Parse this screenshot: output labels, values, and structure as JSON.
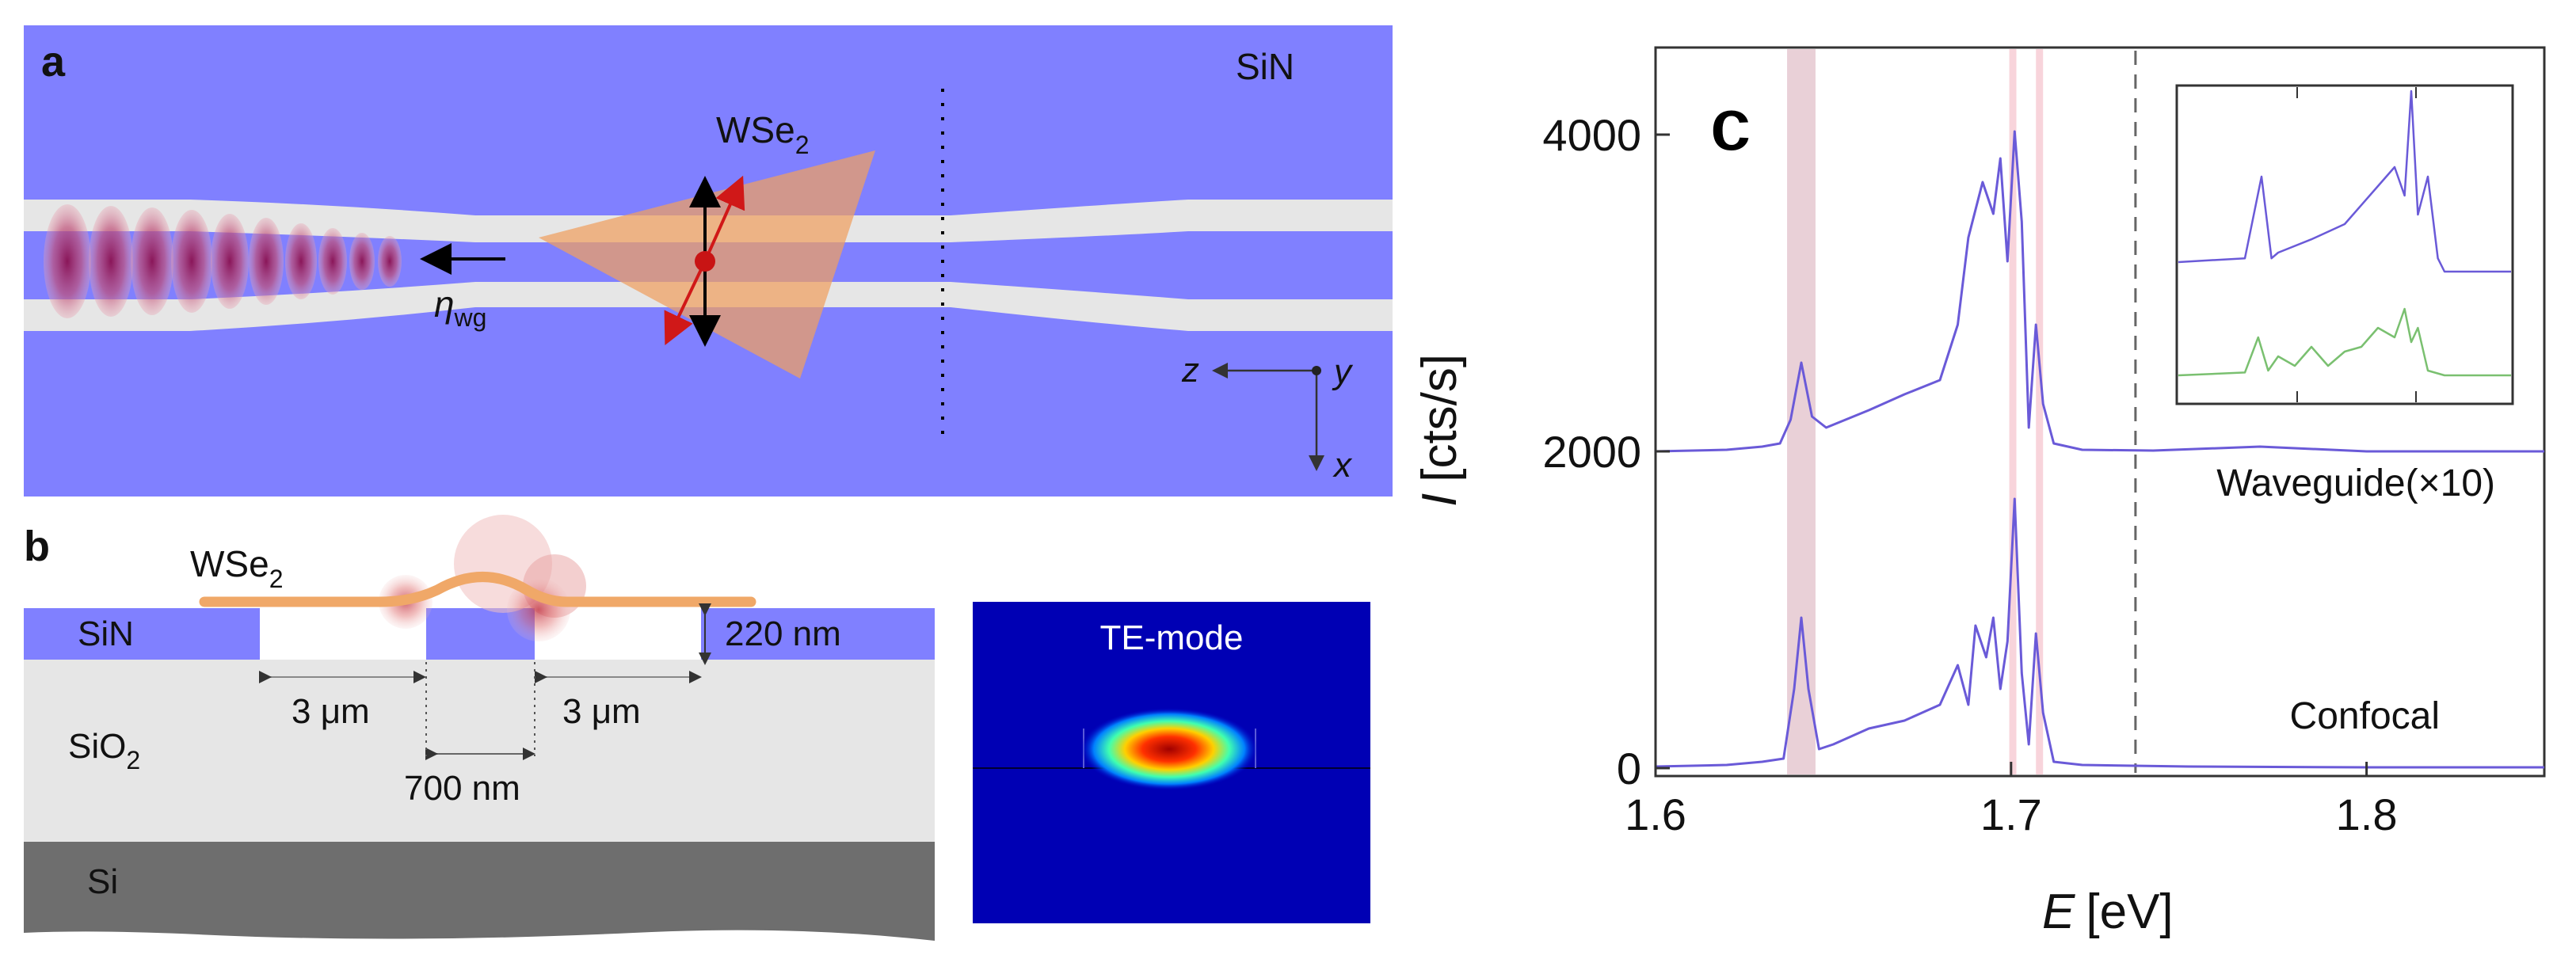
{
  "figure": {
    "panel_a": {
      "letter": "a",
      "material_label": "SiN",
      "flake_label_main": "WSe",
      "flake_label_sub": "2",
      "efficiency_label_main": "η",
      "efficiency_label_sub": "wg",
      "axis_z": "z",
      "axis_y": "y",
      "axis_x": "x",
      "colors": {
        "sin": "#8080ff",
        "oxide": "#e6e6e6",
        "flake": "#f0a060",
        "mode": "#a03060"
      }
    },
    "panel_b": {
      "letter": "b",
      "flake_label_main": "WSe",
      "flake_label_sub": "2",
      "sin_label": "SiN",
      "sio2_label_main": "SiO",
      "sio2_label_sub": "2",
      "si_label": "Si",
      "thickness_label": "220 nm",
      "gap_left_label": "3 μm",
      "gap_right_label": "3 μm",
      "width_label": "700 nm",
      "mode_label": "TE-mode"
    },
    "panel_c": {
      "letter": "c",
      "inset_label": "",
      "chart_data": {
        "type": "line",
        "xlabel_main": "E",
        "xlabel_unit": "[eV]",
        "ylabel_main": "I",
        "ylabel_unit": "[cts/s]",
        "xlim": [
          1.6,
          1.85
        ],
        "ylim": [
          -50,
          4550
        ],
        "x_ticks": [
          1.6,
          1.7,
          1.8
        ],
        "x_tick_labels": [
          "1.6",
          "1.7",
          "1.8"
        ],
        "y_ticks": [
          0,
          2000,
          4000
        ],
        "y_tick_labels": [
          "0",
          "2000",
          "4000"
        ],
        "highlight_bands": [
          [
            1.637,
            1.645
          ],
          [
            1.6995,
            1.7015
          ],
          [
            1.707,
            1.709
          ]
        ],
        "dashed_line_x": 1.735,
        "series": [
          {
            "name": "Waveguide(×10)",
            "color": "#6a5ad8",
            "x": [
              1.6,
              1.62,
              1.63,
              1.635,
              1.638,
              1.641,
              1.644,
              1.648,
              1.66,
              1.67,
              1.68,
              1.685,
              1.688,
              1.692,
              1.695,
              1.697,
              1.699,
              1.701,
              1.703,
              1.705,
              1.707,
              1.709,
              1.712,
              1.72,
              1.74,
              1.77,
              1.8,
              1.85
            ],
            "y": [
              2000,
              2010,
              2030,
              2050,
              2200,
              2560,
              2220,
              2150,
              2260,
              2360,
              2450,
              2800,
              3350,
              3700,
              3500,
              3850,
              3200,
              4020,
              3450,
              2150,
              2800,
              2300,
              2050,
              2010,
              2005,
              2030,
              2000,
              2000
            ]
          },
          {
            "name": "Confocal",
            "color": "#6a5ad8",
            "x": [
              1.6,
              1.62,
              1.63,
              1.636,
              1.639,
              1.641,
              1.643,
              1.646,
              1.65,
              1.66,
              1.67,
              1.675,
              1.68,
              1.685,
              1.688,
              1.69,
              1.693,
              1.695,
              1.697,
              1.699,
              1.701,
              1.703,
              1.705,
              1.707,
              1.709,
              1.712,
              1.72,
              1.75,
              1.8,
              1.85
            ],
            "y": [
              10,
              20,
              40,
              60,
              500,
              950,
              500,
              120,
              150,
              250,
              300,
              350,
              400,
              650,
              400,
              900,
              700,
              950,
              500,
              800,
              1700,
              600,
              150,
              850,
              350,
              40,
              20,
              10,
              5,
              5
            ]
          }
        ],
        "inset_series": [
          {
            "name": "blue",
            "color": "#6a5ad8",
            "x": [
              0,
              0.2,
              0.25,
              0.28,
              0.3,
              0.4,
              0.5,
              0.6,
              0.65,
              0.68,
              0.7,
              0.72,
              0.75,
              0.78,
              0.8,
              0.85,
              1.0
            ],
            "y": [
              0.1,
              0.12,
              0.55,
              0.12,
              0.15,
              0.22,
              0.3,
              0.5,
              0.6,
              0.45,
              1.0,
              0.35,
              0.55,
              0.12,
              0.05,
              0.05,
              0.05
            ]
          },
          {
            "name": "green",
            "color": "#7ac070",
            "x": [
              0,
              0.2,
              0.24,
              0.27,
              0.3,
              0.35,
              0.4,
              0.45,
              0.5,
              0.55,
              0.6,
              0.65,
              0.68,
              0.7,
              0.72,
              0.75,
              0.8,
              1.0
            ],
            "y": [
              0.05,
              0.08,
              0.45,
              0.1,
              0.25,
              0.15,
              0.35,
              0.15,
              0.3,
              0.35,
              0.55,
              0.45,
              0.75,
              0.4,
              0.55,
              0.1,
              0.05,
              0.05
            ]
          }
        ]
      }
    }
  }
}
